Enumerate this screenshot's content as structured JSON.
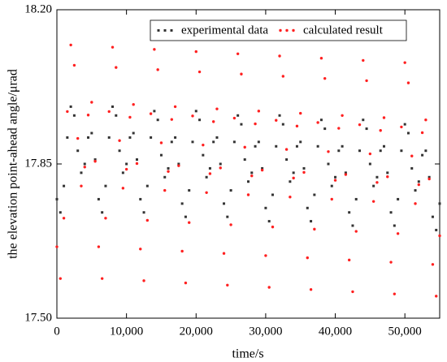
{
  "chart_data": {
    "type": "scatter",
    "x_label": "time/s",
    "y_label": "the elevation point-ahead angle/μrad",
    "x": [
      0,
      500,
      1000,
      1500,
      2000,
      2500,
      3000,
      3500,
      4000,
      4500,
      5000,
      5500,
      6000,
      6500,
      7000,
      7500,
      8000,
      8500,
      9000,
      9500,
      10000,
      10500,
      11000,
      11500,
      12000,
      12500,
      13000,
      13500,
      14000,
      14500,
      15000,
      15500,
      16000,
      16500,
      17000,
      17500,
      18000,
      18500,
      19000,
      19500,
      20000,
      20500,
      21000,
      21500,
      22000,
      22500,
      23000,
      23500,
      24000,
      24500,
      25000,
      25500,
      26000,
      26500,
      27000,
      27500,
      28000,
      28500,
      29000,
      29500,
      30000,
      30500,
      31000,
      31500,
      32000,
      32500,
      33000,
      33500,
      34000,
      34500,
      35000,
      35500,
      36000,
      36500,
      37000,
      37500,
      38000,
      38500,
      39000,
      39500,
      40000,
      40500,
      41000,
      41500,
      42000,
      42500,
      43000,
      43500,
      44000,
      44500,
      45000,
      45500,
      46000,
      46500,
      47000,
      47500,
      48000,
      48500,
      49000,
      49500,
      50000,
      50500,
      51000,
      51500,
      52000,
      52500,
      53000,
      53500,
      54000,
      54500,
      55000
    ],
    "series": [
      {
        "name": "experimental data",
        "color": "#333333",
        "marker": "square",
        "values": [
          17.77,
          17.74,
          17.8,
          17.91,
          17.98,
          17.96,
          17.88,
          17.83,
          17.85,
          17.91,
          17.92,
          17.86,
          17.77,
          17.74,
          17.8,
          17.91,
          17.98,
          17.96,
          17.88,
          17.83,
          17.85,
          17.91,
          17.92,
          17.86,
          17.77,
          17.74,
          17.8,
          17.91,
          17.97,
          17.95,
          17.87,
          17.82,
          17.84,
          17.9,
          17.91,
          17.85,
          17.76,
          17.73,
          17.79,
          17.9,
          17.97,
          17.95,
          17.87,
          17.82,
          17.84,
          17.9,
          17.91,
          17.85,
          17.76,
          17.73,
          17.79,
          17.9,
          17.96,
          17.94,
          17.86,
          17.81,
          17.83,
          17.89,
          17.9,
          17.84,
          17.75,
          17.72,
          17.78,
          17.89,
          17.96,
          17.94,
          17.86,
          17.81,
          17.83,
          17.89,
          17.9,
          17.84,
          17.75,
          17.72,
          17.78,
          17.89,
          17.95,
          17.93,
          17.85,
          17.8,
          17.82,
          17.88,
          17.89,
          17.83,
          17.74,
          17.71,
          17.77,
          17.88,
          17.95,
          17.93,
          17.85,
          17.8,
          17.82,
          17.88,
          17.89,
          17.83,
          17.74,
          17.71,
          17.77,
          17.88,
          17.94,
          17.92,
          17.84,
          17.79,
          17.81,
          17.87,
          17.88,
          17.82,
          17.73,
          17.7,
          17.76
        ]
      },
      {
        "name": "calculated result",
        "color": "#ff2020",
        "marker": "circle",
        "values": [
          17.662,
          17.59,
          17.727,
          17.969,
          18.12,
          18.074,
          17.908,
          17.8,
          17.843,
          17.961,
          17.99,
          17.856,
          17.662,
          17.59,
          17.727,
          17.969,
          18.115,
          18.069,
          17.903,
          17.795,
          17.838,
          17.956,
          17.985,
          17.851,
          17.657,
          17.585,
          17.722,
          17.964,
          18.11,
          18.064,
          17.898,
          17.79,
          17.833,
          17.951,
          17.98,
          17.846,
          17.652,
          17.58,
          17.717,
          17.959,
          18.105,
          18.059,
          17.893,
          17.785,
          17.828,
          17.946,
          17.975,
          17.841,
          17.647,
          17.575,
          17.712,
          17.954,
          18.1,
          18.054,
          17.888,
          17.78,
          17.823,
          17.941,
          17.97,
          17.836,
          17.642,
          17.57,
          17.707,
          17.949,
          18.095,
          18.049,
          17.883,
          17.775,
          17.818,
          17.936,
          17.965,
          17.831,
          17.637,
          17.565,
          17.702,
          17.944,
          18.09,
          18.044,
          17.878,
          17.77,
          17.813,
          17.931,
          17.96,
          17.826,
          17.632,
          17.56,
          17.697,
          17.939,
          18.085,
          18.039,
          17.873,
          17.765,
          17.808,
          17.926,
          17.955,
          17.821,
          17.627,
          17.555,
          17.692,
          17.934,
          18.08,
          18.034,
          17.868,
          17.76,
          17.803,
          17.921,
          17.95,
          17.816,
          17.622,
          17.55,
          17.687
        ]
      }
    ],
    "xlim": [
      0,
      55000
    ],
    "xticks": [
      0,
      {
        "value": 10000,
        "label": "10,000"
      },
      {
        "value": 20000,
        "label": "20,000"
      },
      {
        "value": 30000,
        "label": "30,000"
      },
      {
        "value": 40000,
        "label": "40,000"
      },
      {
        "value": 50000,
        "label": "50,000"
      }
    ],
    "ylim": [
      17.5,
      18.2
    ],
    "yticks": [
      {
        "value": 17.5,
        "label": "17.50"
      },
      17.85,
      {
        "value": 18.2,
        "label": "18.20"
      }
    ],
    "legend": "top-right"
  }
}
